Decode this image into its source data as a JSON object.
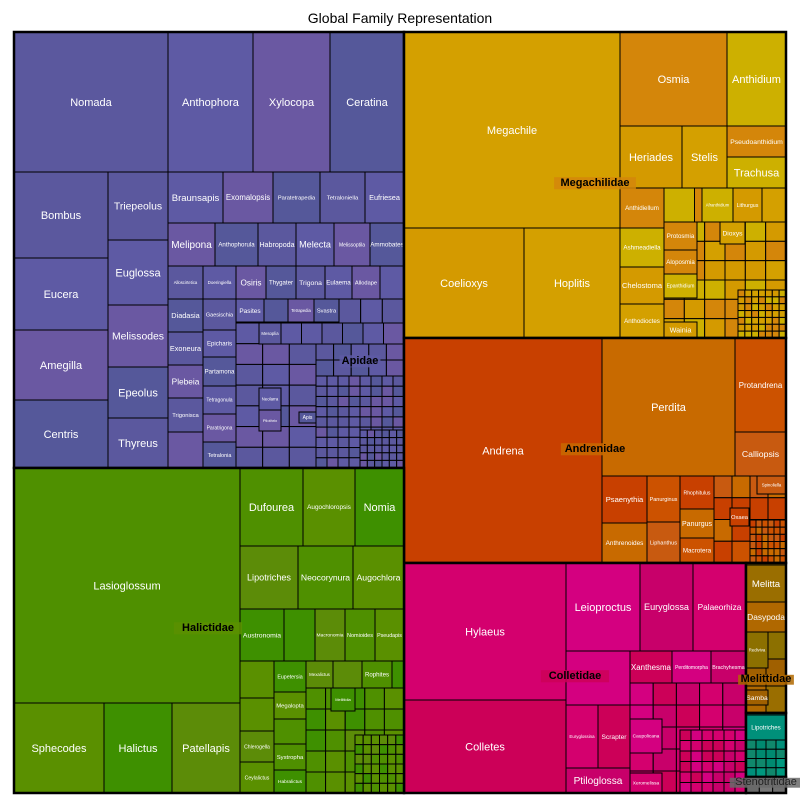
{
  "chart_data": {
    "type": "treemap",
    "title": "Global Family Representation",
    "families": [
      {
        "name": "Apidae",
        "colors": [
          "#5b589e",
          "#5e5aa4",
          "#6a58a2",
          "#55589a"
        ],
        "genera": [
          "Nomada",
          "Anthophora",
          "Xylocopa",
          "Ceratina",
          "Bombus",
          "Eucera",
          "Amegilla",
          "Centris",
          "Triepeolus",
          "Euglossa",
          "Melissodes",
          "Epeolus",
          "Thyreus",
          "Braunsapis",
          "Exomalopsis",
          "Paratetrapedia",
          "Tetraloniella",
          "Eufriesea",
          "Melipona",
          "Anthophorula",
          "Habropoda",
          "Melecta",
          "Melissoptila",
          "Ammobates",
          "Alloscirtetica",
          "Doeringiella",
          "Osiris",
          "Thygater",
          "Trigona",
          "Eulaema",
          "Allodape",
          "Diadasia",
          "Gaesischia",
          "Pasites",
          "Tetrapedia",
          "Svastra",
          "Exoneura",
          "Epicharis",
          "Plebeia",
          "Partamona",
          "Trigonisca",
          "Tetragonula",
          "Paratrigona",
          "Tetralonia",
          "Mesoplia",
          "Neolarra",
          "Pilothrix",
          "Apis"
        ]
      },
      {
        "name": "Megachilidae",
        "colors": [
          "#d4a000",
          "#d4860a",
          "#cdb000",
          "#d49a00"
        ],
        "genera": [
          "Megachile",
          "Osmia",
          "Anthidium",
          "Heriades",
          "Stelis",
          "Pseudoanthidium",
          "Trachusa",
          "Coelioxys",
          "Hoplitis",
          "Anthidiellum",
          "Ashmeadiella",
          "Chelostoma",
          "Anthodioctes",
          "Protosmia",
          "Afranthidium",
          "Lithurgus",
          "Dioxys",
          "Aloposmia",
          "Epanthidium",
          "Wainia"
        ]
      },
      {
        "name": "Andrenidae",
        "colors": [
          "#c84000",
          "#c86a00",
          "#cc5200",
          "#c85a10"
        ],
        "genera": [
          "Andrena",
          "Perdita",
          "Protandrena",
          "Calliopsis",
          "Psaenythia",
          "Anthrenoides",
          "Panurginus",
          "Liphanthus",
          "Rhophitulus",
          "Panurgus",
          "Macrotera",
          "Spinoliella",
          "Oxaea"
        ]
      },
      {
        "name": "Colletidae",
        "colors": [
          "#d4006e",
          "#cc0058",
          "#d40080",
          "#c8006a"
        ],
        "genera": [
          "Hylaeus",
          "Colletes",
          "Leioproctus",
          "Euryglossa",
          "Palaeorhiza",
          "Xanthesma",
          "Perditomorpha",
          "Brachyhesma",
          "Euryglossina",
          "Scrapter",
          "Caupolicana",
          "Ptiloglossa",
          "Xeromelissa"
        ]
      },
      {
        "name": "Halictidae",
        "colors": [
          "#4f9000",
          "#5a9000",
          "#3e9000",
          "#5c8c08"
        ],
        "genera": [
          "Lasioglossum",
          "Sphecodes",
          "Halictus",
          "Patellapis",
          "Dufourea",
          "Augochloropsis",
          "Nomia",
          "Lipotriches",
          "Neocorynura",
          "Augochlora",
          "Austronomia",
          "Macronomia",
          "Nomioides",
          "Pseudapis",
          "Eupetersia",
          "Mexalictus",
          "Rophites",
          "Megalopta",
          "Mellitidia",
          "Chlerogella",
          "Systropha",
          "Ceylalictus",
          "Habralictus"
        ]
      },
      {
        "name": "Melittidae",
        "colors": [
          "#9a6e00",
          "#b06800",
          "#8c7000",
          "#a06000"
        ],
        "genera": [
          "Melitta",
          "Dasypoda",
          "Rediviva",
          "Samba"
        ]
      },
      {
        "name": "",
        "colors": [
          "#00907a",
          "#008a70",
          "#00987e",
          "#10886c"
        ],
        "genera": [
          "Lipotriches"
        ]
      },
      {
        "name": "Stenotritidae",
        "colors": [
          "#707070",
          "#6a6a6a",
          "#777777",
          "#666666"
        ],
        "genera": []
      }
    ]
  }
}
